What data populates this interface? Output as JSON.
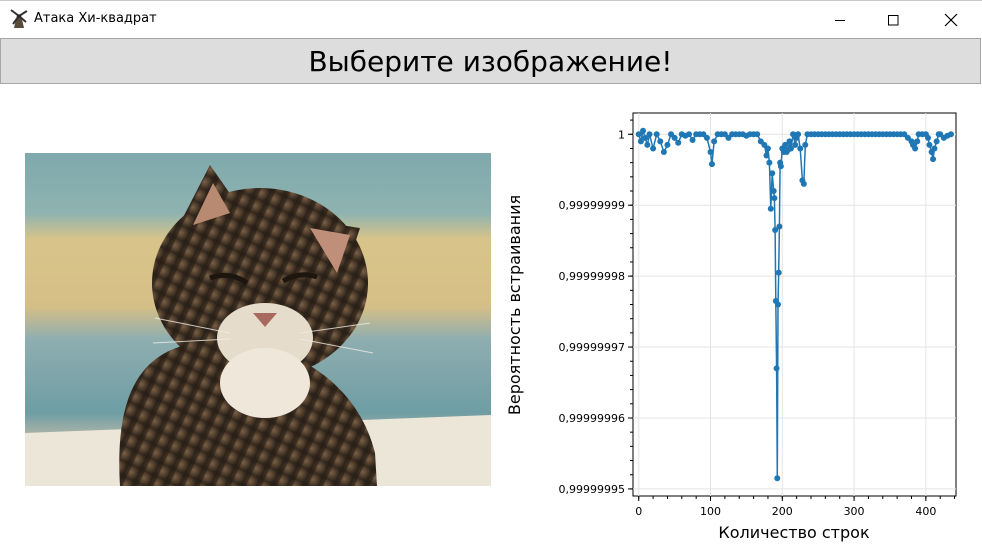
{
  "window": {
    "title": "Атака Хи-квадрат",
    "app_icon": "windmill-icon",
    "controls": [
      "minimize-icon",
      "maximize-icon",
      "close-icon"
    ]
  },
  "main": {
    "choose_button_label": "Выберите изображение!",
    "image_alt": "cat-photo"
  },
  "chart_data": {
    "type": "line",
    "xlabel": "Количество строк",
    "ylabel": "Вероятность встраивания",
    "xlim": [
      -8,
      442
    ],
    "ylim": [
      0.999999949,
      1.000000003
    ],
    "x_ticks": [
      0,
      100,
      200,
      300,
      400
    ],
    "x_tick_labels": [
      "0",
      "100",
      "200",
      "300",
      "400"
    ],
    "y_ticks": [
      0.99999995,
      0.99999996,
      0.99999997,
      0.99999998,
      0.99999999,
      1.0
    ],
    "y_tick_labels": [
      "0,99999995",
      "0,99999996",
      "0,99999997",
      "0,99999998",
      "0,99999999",
      "1"
    ],
    "grid": true,
    "series_color": "#1f77b4",
    "series": [
      {
        "x": [
          0,
          3,
          6,
          9,
          12,
          15,
          20,
          25,
          30,
          35,
          40,
          45,
          50,
          55,
          60,
          65,
          70,
          75,
          80,
          85,
          90,
          95,
          100,
          102,
          105,
          110,
          115,
          120,
          125,
          130,
          135,
          140,
          145,
          150,
          155,
          160,
          165,
          170,
          175,
          178,
          180,
          182,
          184,
          186,
          188,
          189,
          190,
          191,
          192,
          193,
          194,
          195,
          196,
          197,
          198,
          200,
          202,
          204,
          206,
          208,
          210,
          212,
          215,
          218,
          220,
          222,
          225,
          228,
          230,
          232,
          235,
          240,
          245,
          250,
          255,
          260,
          265,
          270,
          275,
          280,
          285,
          290,
          295,
          300,
          305,
          310,
          315,
          320,
          325,
          330,
          335,
          340,
          345,
          350,
          355,
          360,
          365,
          370,
          375,
          380,
          382,
          385,
          388,
          390,
          395,
          400,
          403,
          405,
          408,
          410,
          412,
          415,
          418,
          420,
          425,
          430,
          435
        ],
        "y": [
          1.0,
          0.999999999,
          1.0000000005,
          0.9999999995,
          0.9999999985,
          1.0,
          0.999999998,
          1.0,
          0.999999999,
          0.9999999975,
          0.9999999985,
          1.0,
          0.9999999995,
          0.9999999988,
          1.0,
          0.9999999998,
          1.0,
          0.9999999992,
          1.0,
          1.0,
          1.0,
          0.9999999995,
          0.9999999975,
          0.9999999958,
          0.999999999,
          1.0,
          1.0,
          1.0,
          0.9999999995,
          1.0,
          1.0,
          1.0,
          1.0,
          0.9999999998,
          1.0,
          1.0,
          1.0,
          0.999999999,
          0.9999999985,
          0.999999997,
          0.999999998,
          0.999999996,
          0.9999999895,
          0.9999999945,
          0.999999992,
          0.999999991,
          0.9999999865,
          0.9999999765,
          0.999999967,
          0.9999999515,
          0.999999976,
          0.9999999805,
          0.999999987,
          0.999999996,
          0.9999999955,
          0.999999998,
          0.9999999975,
          0.9999999985,
          0.9999999975,
          0.9999999978,
          0.999999999,
          0.999999998,
          1.0,
          0.9999999985,
          0.9999999995,
          1.0,
          0.999999998,
          0.9999999935,
          0.999999993,
          0.9999999985,
          1.0,
          1.0,
          1.0,
          1.0,
          1.0,
          1.0,
          1.0,
          1.0,
          1.0,
          1.0,
          1.0,
          1.0,
          1.0,
          1.0,
          1.0,
          1.0,
          1.0,
          1.0,
          1.0,
          1.0,
          1.0,
          1.0,
          1.0,
          1.0,
          1.0,
          1.0,
          1.0,
          1.0,
          0.9999999995,
          0.999999999,
          0.9999999985,
          0.999999998,
          0.999999999,
          1.0,
          1.0,
          1.0,
          0.9999999995,
          0.9999999985,
          0.9999999975,
          0.9999999965,
          0.999999998,
          0.999999999,
          1.0,
          1.0,
          0.9999999995,
          0.9999999998,
          1.0
        ]
      }
    ]
  }
}
